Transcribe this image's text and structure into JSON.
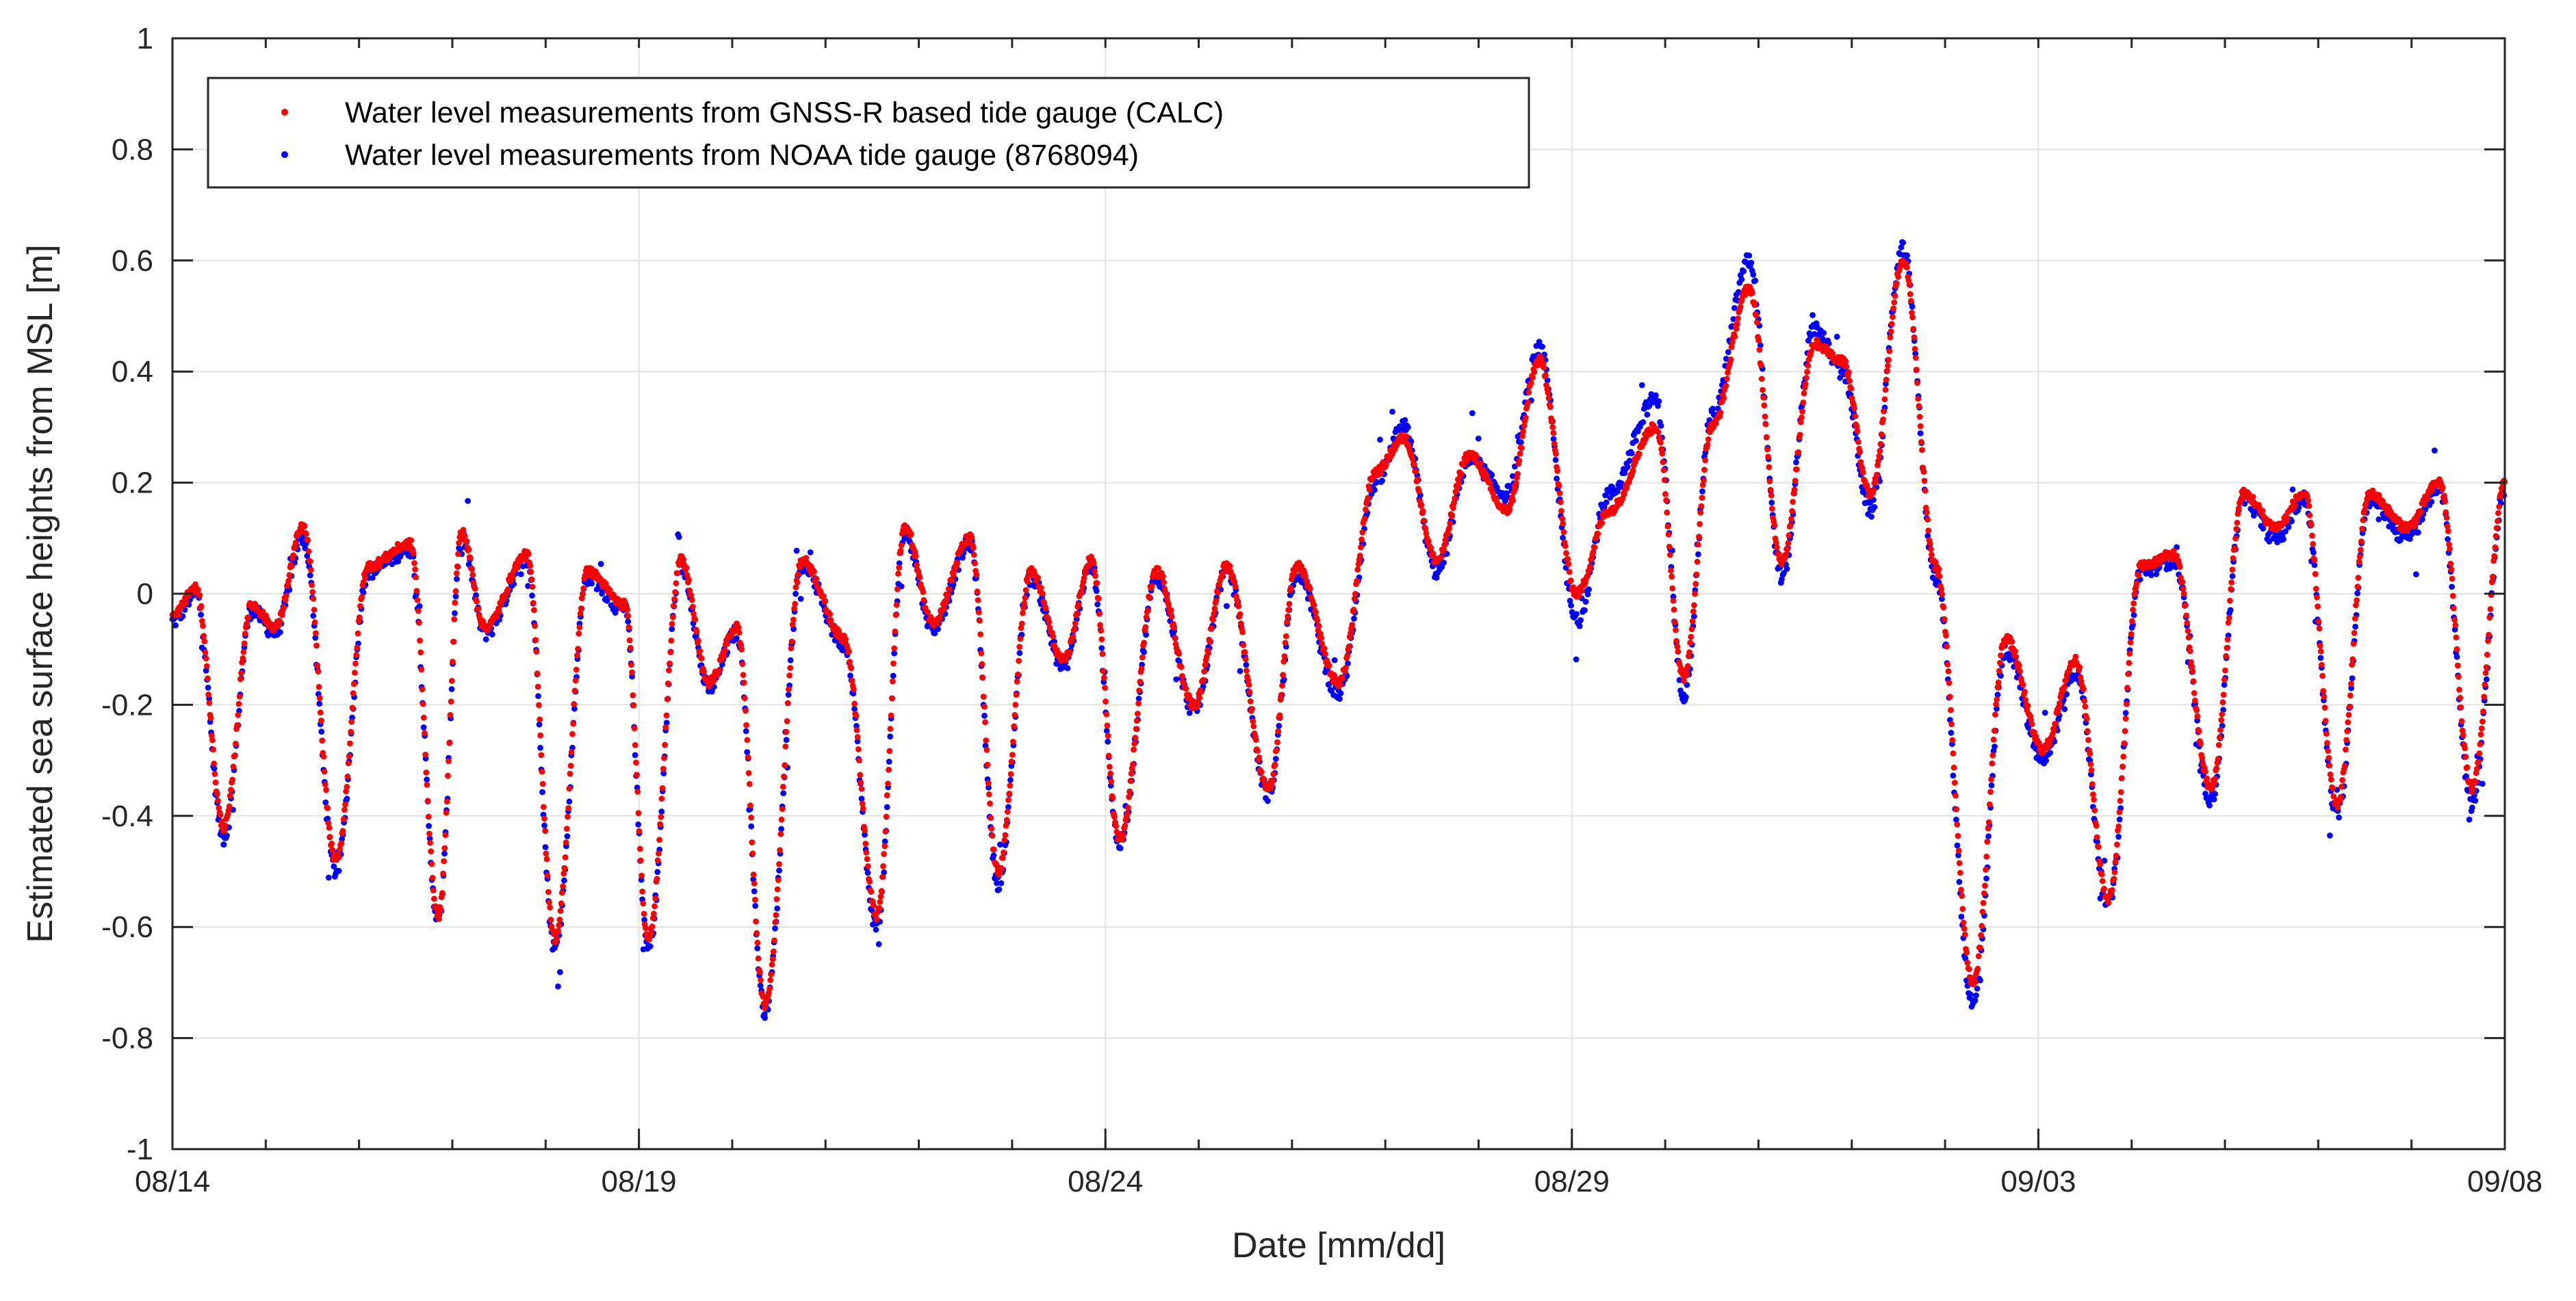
{
  "chart_data": {
    "type": "scatter",
    "title": "",
    "xlabel": "Date [mm/dd]",
    "ylabel": "Estimated sea surface heights from MSL [m]",
    "x_unit": "days since 08/14",
    "xlim": [
      0,
      25
    ],
    "ylim": [
      -1,
      1
    ],
    "x_major_ticks": [
      0,
      5,
      10,
      15,
      20,
      25
    ],
    "x_tick_labels": [
      "08/14",
      "08/19",
      "08/24",
      "08/29",
      "09/03",
      "09/08"
    ],
    "y_ticks": [
      -1,
      -0.8,
      -0.6,
      -0.4,
      -0.2,
      0,
      0.2,
      0.4,
      0.6,
      0.8,
      1
    ],
    "y_tick_labels": [
      "-1",
      "-0.8",
      "-0.6",
      "-0.4",
      "-0.2",
      "0",
      "0.2",
      "0.4",
      "0.6",
      "0.8",
      "1"
    ],
    "grid": true,
    "legend_position": "top-left",
    "colors": {
      "gnss": "#ff0000",
      "noaa": "#0000ff",
      "axis": "#262626",
      "grid": "#e2e2e2"
    },
    "series": [
      {
        "name": "Water level measurements from GNSS-R based tide gauge (CALC)",
        "color": "#ff0000",
        "noise": 0.008,
        "x": [
          0,
          0.25,
          0.55,
          0.85,
          1.1,
          1.4,
          1.75,
          2.1,
          2.55,
          2.85,
          3.1,
          3.35,
          3.8,
          4.1,
          4.45,
          4.85,
          5.1,
          5.45,
          5.75,
          6.05,
          6.35,
          6.75,
          7.2,
          7.55,
          7.85,
          8.15,
          8.55,
          8.85,
          9.2,
          9.55,
          9.85,
          10.15,
          10.55,
          10.95,
          11.3,
          11.75,
          12.05,
          12.5,
          12.9,
          13.2,
          13.55,
          13.9,
          14.3,
          14.65,
          15.05,
          15.4,
          15.9,
          16.2,
          16.5,
          16.9,
          17.25,
          17.6,
          17.9,
          18.2,
          18.55,
          18.9,
          19.3,
          19.65,
          20.05,
          20.4,
          20.75,
          21.1,
          21.45,
          21.85,
          22.2,
          22.55,
          22.85,
          23.2,
          23.55,
          23.95,
          24.3,
          24.65,
          25.0
        ],
        "y": [
          -0.04,
          0.01,
          -0.42,
          -0.02,
          -0.06,
          0.12,
          -0.48,
          0.05,
          0.09,
          -0.58,
          0.11,
          -0.06,
          0.07,
          -0.62,
          0.04,
          -0.02,
          -0.62,
          0.06,
          -0.16,
          -0.06,
          -0.74,
          0.06,
          -0.08,
          -0.58,
          0.12,
          -0.05,
          0.1,
          -0.5,
          0.04,
          -0.12,
          0.06,
          -0.44,
          0.04,
          -0.2,
          0.05,
          -0.35,
          0.05,
          -0.16,
          0.22,
          0.28,
          0.06,
          0.25,
          0.15,
          0.42,
          0.0,
          0.15,
          0.3,
          -0.15,
          0.3,
          0.55,
          0.06,
          0.45,
          0.42,
          0.18,
          0.6,
          0.05,
          -0.7,
          -0.08,
          -0.28,
          -0.12,
          -0.55,
          0.05,
          0.07,
          -0.35,
          0.18,
          0.12,
          0.18,
          -0.38,
          0.18,
          0.12,
          0.2,
          -0.35,
          0.2
        ]
      },
      {
        "name": "Water level measurements from NOAA tide gauge (8768094)",
        "color": "#0000ff",
        "noise": 0.014,
        "x": [
          0,
          0.25,
          0.55,
          0.85,
          1.1,
          1.4,
          1.75,
          2.1,
          2.55,
          2.85,
          3.1,
          3.35,
          3.8,
          4.1,
          4.45,
          4.85,
          5.1,
          5.45,
          5.75,
          6.05,
          6.35,
          6.75,
          7.2,
          7.55,
          7.85,
          8.15,
          8.55,
          8.85,
          9.2,
          9.55,
          9.85,
          10.15,
          10.55,
          10.95,
          11.3,
          11.75,
          12.05,
          12.5,
          12.9,
          13.2,
          13.55,
          13.9,
          14.3,
          14.65,
          15.05,
          15.4,
          15.9,
          16.2,
          16.5,
          16.9,
          17.25,
          17.6,
          17.9,
          18.2,
          18.55,
          18.9,
          19.3,
          19.65,
          20.05,
          20.4,
          20.75,
          21.1,
          21.45,
          21.85,
          22.2,
          22.55,
          22.85,
          23.2,
          23.55,
          23.95,
          24.3,
          24.65,
          25.0
        ],
        "y": [
          -0.05,
          0.0,
          -0.44,
          -0.03,
          -0.07,
          0.1,
          -0.5,
          0.04,
          0.08,
          -0.59,
          0.1,
          -0.07,
          0.06,
          -0.64,
          0.03,
          -0.03,
          -0.64,
          0.05,
          -0.17,
          -0.07,
          -0.75,
          0.05,
          -0.09,
          -0.6,
          0.11,
          -0.06,
          0.09,
          -0.52,
          0.03,
          -0.13,
          0.05,
          -0.45,
          0.03,
          -0.21,
          0.04,
          -0.36,
          0.04,
          -0.18,
          0.2,
          0.3,
          0.04,
          0.24,
          0.18,
          0.44,
          -0.05,
          0.18,
          0.35,
          -0.18,
          0.32,
          0.6,
          0.03,
          0.48,
          0.4,
          0.15,
          0.62,
          0.03,
          -0.74,
          -0.1,
          -0.3,
          -0.14,
          -0.56,
          0.04,
          0.06,
          -0.37,
          0.17,
          0.1,
          0.17,
          -0.4,
          0.17,
          0.1,
          0.19,
          -0.38,
          0.19
        ]
      }
    ]
  }
}
